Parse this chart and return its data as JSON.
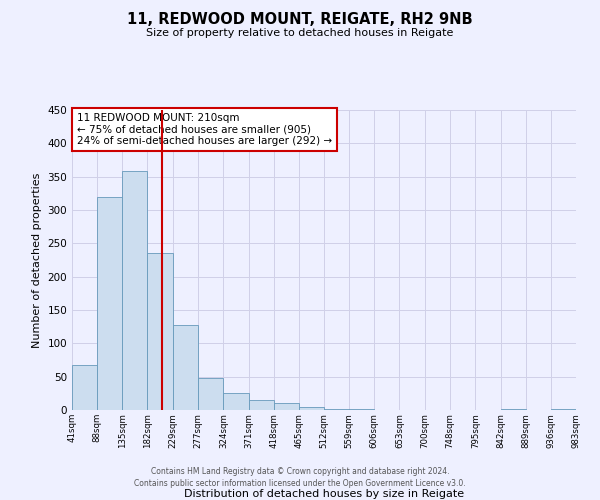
{
  "title": "11, REDWOOD MOUNT, REIGATE, RH2 9NB",
  "subtitle": "Size of property relative to detached houses in Reigate",
  "xlabel": "Distribution of detached houses by size in Reigate",
  "ylabel": "Number of detached properties",
  "bar_color": "#ccddef",
  "bar_edgecolor": "#6699bb",
  "background_color": "#eef0ff",
  "grid_color": "#d0d0e8",
  "annotation_title": "11 REDWOOD MOUNT: 210sqm",
  "annotation_line1": "← 75% of detached houses are smaller (905)",
  "annotation_line2": "24% of semi-detached houses are larger (292) →",
  "marker_value": 210,
  "marker_color": "#cc0000",
  "footer_line1": "Contains HM Land Registry data © Crown copyright and database right 2024.",
  "footer_line2": "Contains public sector information licensed under the Open Government Licence v3.0.",
  "bin_edges": [
    41,
    88,
    135,
    182,
    229,
    277,
    324,
    371,
    418,
    465,
    512,
    559,
    606,
    653,
    700,
    748,
    795,
    842,
    889,
    936,
    983
  ],
  "bin_heights": [
    67,
    320,
    358,
    235,
    127,
    48,
    25,
    15,
    10,
    4,
    1,
    1,
    0,
    0,
    0,
    0,
    0,
    1,
    0,
    1
  ],
  "ylim": [
    0,
    450
  ],
  "xlim": [
    41,
    983
  ]
}
